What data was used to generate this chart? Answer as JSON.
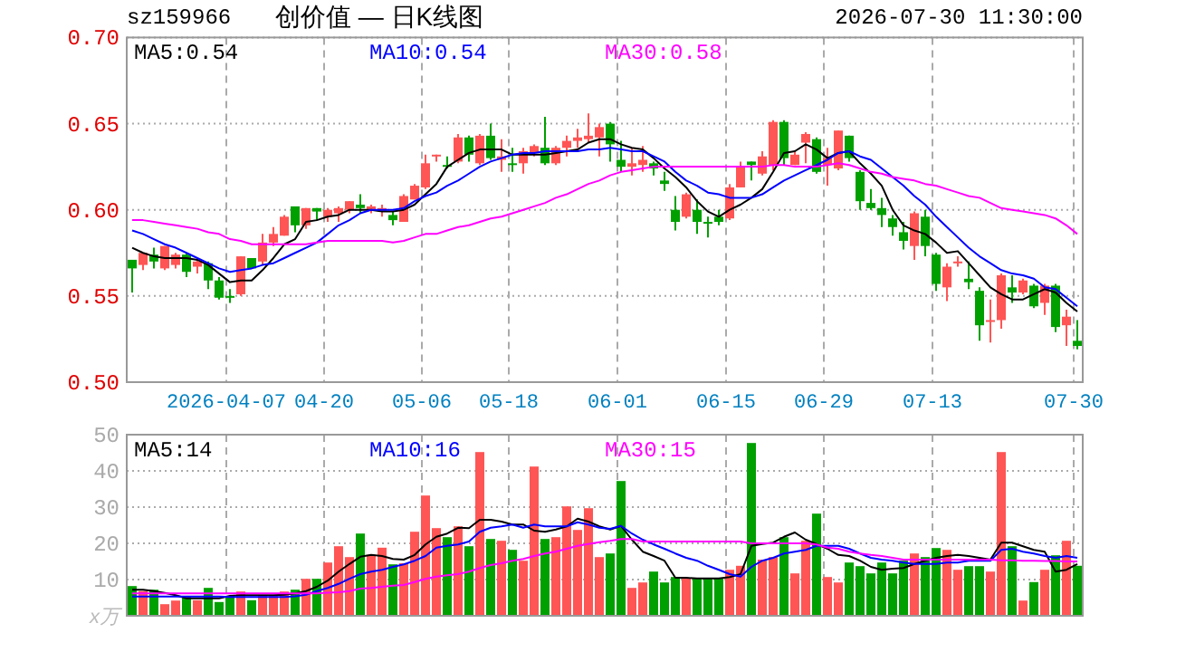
{
  "chart_data": [
    {
      "type": "candlestick",
      "title": "创价值 — 日K线图",
      "annotations": [
        "sz159966",
        "2026-07-30 11:30:00"
      ],
      "categories": [
        null,
        null,
        null,
        null,
        null,
        null,
        null,
        null,
        null,
        "2026-04-07",
        null,
        null,
        null,
        null,
        null,
        null,
        null,
        null,
        "04-20",
        null,
        null,
        null,
        null,
        null,
        null,
        null,
        null,
        "05-06",
        null,
        null,
        null,
        null,
        null,
        null,
        null,
        "05-18",
        null,
        null,
        null,
        null,
        null,
        null,
        null,
        null,
        null,
        "06-01",
        null,
        null,
        null,
        null,
        null,
        null,
        null,
        null,
        null,
        "06-15",
        null,
        null,
        null,
        null,
        null,
        null,
        null,
        null,
        "06-29",
        null,
        null,
        null,
        null,
        null,
        null,
        null,
        null,
        null,
        "07-13",
        null,
        null,
        null,
        null,
        null,
        null,
        null,
        null,
        null,
        null,
        null,
        null,
        "07-30"
      ],
      "ohlc": [
        [
          0.571,
          0.571,
          0.552,
          0.566
        ],
        [
          0.568,
          0.575,
          0.565,
          0.575
        ],
        [
          0.574,
          0.578,
          0.566,
          0.57
        ],
        [
          0.566,
          0.579,
          0.565,
          0.579
        ],
        [
          0.568,
          0.575,
          0.566,
          0.574
        ],
        [
          0.574,
          0.575,
          0.561,
          0.564
        ],
        [
          0.567,
          0.572,
          0.563,
          0.57
        ],
        [
          0.569,
          0.57,
          0.554,
          0.559
        ],
        [
          0.559,
          0.561,
          0.548,
          0.549
        ],
        [
          0.55,
          0.554,
          0.546,
          0.549
        ],
        [
          0.551,
          0.573,
          0.55,
          0.573
        ],
        [
          0.572,
          0.572,
          0.566,
          0.566
        ],
        [
          0.57,
          0.586,
          0.568,
          0.581
        ],
        [
          0.581,
          0.59,
          0.579,
          0.586
        ],
        [
          0.585,
          0.597,
          0.585,
          0.596
        ],
        [
          0.602,
          0.602,
          0.587,
          0.591
        ],
        [
          0.591,
          0.601,
          0.589,
          0.601
        ],
        [
          0.601,
          0.601,
          0.594,
          0.599
        ],
        [
          0.596,
          0.601,
          0.593,
          0.6
        ],
        [
          0.598,
          0.602,
          0.593,
          0.601
        ],
        [
          0.6,
          0.605,
          0.598,
          0.605
        ],
        [
          0.603,
          0.609,
          0.598,
          0.601
        ],
        [
          0.6,
          0.603,
          0.598,
          0.602
        ],
        [
          0.599,
          0.603,
          0.596,
          0.601
        ],
        [
          0.597,
          0.599,
          0.591,
          0.594
        ],
        [
          0.593,
          0.609,
          0.593,
          0.608
        ],
        [
          0.606,
          0.615,
          0.606,
          0.614
        ],
        [
          0.613,
          0.632,
          0.612,
          0.627
        ],
        [
          0.631,
          0.632,
          0.628,
          0.632
        ],
        [
          0.626,
          0.631,
          0.624,
          0.625
        ],
        [
          0.628,
          0.644,
          0.627,
          0.642
        ],
        [
          0.642,
          0.643,
          0.628,
          0.632
        ],
        [
          0.627,
          0.644,
          0.626,
          0.643
        ],
        [
          0.643,
          0.65,
          0.629,
          0.63
        ],
        [
          0.629,
          0.641,
          0.622,
          0.631
        ],
        [
          0.627,
          0.636,
          0.622,
          0.626
        ],
        [
          0.627,
          0.636,
          0.621,
          0.634
        ],
        [
          0.633,
          0.638,
          0.631,
          0.637
        ],
        [
          0.636,
          0.654,
          0.626,
          0.627
        ],
        [
          0.627,
          0.637,
          0.626,
          0.636
        ],
        [
          0.636,
          0.643,
          0.631,
          0.64
        ],
        [
          0.64,
          0.647,
          0.636,
          0.642
        ],
        [
          0.641,
          0.656,
          0.639,
          0.643
        ],
        [
          0.642,
          0.65,
          0.631,
          0.648
        ],
        [
          0.65,
          0.651,
          0.628,
          0.638
        ],
        [
          0.629,
          0.64,
          0.622,
          0.625
        ],
        [
          0.625,
          0.636,
          0.62,
          0.627
        ],
        [
          0.626,
          0.637,
          0.622,
          0.629
        ],
        [
          0.627,
          0.628,
          0.62,
          0.624
        ],
        [
          0.617,
          0.622,
          0.611,
          0.615
        ],
        [
          0.6,
          0.608,
          0.588,
          0.593
        ],
        [
          0.596,
          0.61,
          0.595,
          0.609
        ],
        [
          0.6,
          0.606,
          0.586,
          0.593
        ],
        [
          0.593,
          0.596,
          0.584,
          0.592
        ],
        [
          0.596,
          0.6,
          0.591,
          0.593
        ],
        [
          0.595,
          0.615,
          0.594,
          0.613
        ],
        [
          0.613,
          0.628,
          0.613,
          0.625
        ],
        [
          0.628,
          0.628,
          0.617,
          0.626
        ],
        [
          0.621,
          0.634,
          0.62,
          0.631
        ],
        [
          0.626,
          0.652,
          0.623,
          0.651
        ],
        [
          0.651,
          0.652,
          0.626,
          0.63
        ],
        [
          0.626,
          0.634,
          0.626,
          0.632
        ],
        [
          0.639,
          0.645,
          0.627,
          0.644
        ],
        [
          0.641,
          0.642,
          0.621,
          0.622
        ],
        [
          0.626,
          0.636,
          0.614,
          0.63
        ],
        [
          0.624,
          0.646,
          0.623,
          0.646
        ],
        [
          0.643,
          0.643,
          0.628,
          0.63
        ],
        [
          0.622,
          0.623,
          0.6,
          0.605
        ],
        [
          0.604,
          0.612,
          0.6,
          0.601
        ],
        [
          0.601,
          0.607,
          0.59,
          0.597
        ],
        [
          0.595,
          0.597,
          0.585,
          0.59
        ],
        [
          0.587,
          0.593,
          0.577,
          0.582
        ],
        [
          0.579,
          0.599,
          0.571,
          0.598
        ],
        [
          0.596,
          0.6,
          0.573,
          0.579
        ],
        [
          0.574,
          0.575,
          0.553,
          0.557
        ],
        [
          0.555,
          0.569,
          0.547,
          0.567
        ],
        [
          0.569,
          0.573,
          0.567,
          0.57
        ],
        [
          0.56,
          0.57,
          0.554,
          0.558
        ],
        [
          0.553,
          0.555,
          0.524,
          0.533
        ],
        [
          0.535,
          0.548,
          0.523,
          0.536
        ],
        [
          0.536,
          0.563,
          0.531,
          0.562
        ],
        [
          0.555,
          0.562,
          0.546,
          0.552
        ],
        [
          0.552,
          0.56,
          0.551,
          0.559
        ],
        [
          0.556,
          0.557,
          0.543,
          0.544
        ],
        [
          0.546,
          0.557,
          0.539,
          0.556
        ],
        [
          0.556,
          0.557,
          0.529,
          0.532
        ],
        [
          0.533,
          0.542,
          0.521,
          0.538
        ],
        [
          0.524,
          0.536,
          0.519,
          0.521
        ]
      ],
      "colors": [
        "#00a000",
        "#ff5555",
        "#00a000",
        "#ff5555",
        "#ff5555",
        "#00a000",
        "#ff5555",
        "#00a000",
        "#00a000",
        "#00a000",
        "#ff5555",
        "#00a000",
        "#ff5555",
        "#ff5555",
        "#ff5555",
        "#00a000",
        "#ff5555",
        "#00a000",
        "#ff5555",
        "#ff5555",
        "#ff5555",
        "#00a000",
        "#ff5555",
        "#ff5555",
        "#00a000",
        "#ff5555",
        "#ff5555",
        "#ff5555",
        "#ff5555",
        "#00a000",
        "#ff5555",
        "#00a000",
        "#ff5555",
        "#00a000",
        "#ff5555",
        "#00a000",
        "#ff5555",
        "#ff5555",
        "#00a000",
        "#ff5555",
        "#ff5555",
        "#ff5555",
        "#ff5555",
        "#ff5555",
        "#00a000",
        "#00a000",
        "#ff5555",
        "#ff5555",
        "#00a000",
        "#00a000",
        "#00a000",
        "#ff5555",
        "#00a000",
        "#00a000",
        "#00a000",
        "#ff5555",
        "#ff5555",
        "#00a000",
        "#ff5555",
        "#ff5555",
        "#00a000",
        "#ff5555",
        "#ff5555",
        "#00a000",
        "#ff5555",
        "#ff5555",
        "#00a000",
        "#00a000",
        "#00a000",
        "#00a000",
        "#00a000",
        "#00a000",
        "#ff5555",
        "#00a000",
        "#00a000",
        "#ff5555",
        "#ff5555",
        "#00a000",
        "#00a000",
        "#ff5555",
        "#ff5555",
        "#00a000",
        "#ff5555",
        "#00a000",
        "#ff5555",
        "#00a000",
        "#ff5555",
        "#00a000"
      ],
      "series": [
        {
          "type": "line",
          "name": "MA5:0.54",
          "color": "#000000",
          "values": [
            0.578,
            0.575,
            0.573,
            0.572,
            0.572,
            0.572,
            0.571,
            0.568,
            0.563,
            0.558,
            0.559,
            0.559,
            0.565,
            0.572,
            0.58,
            0.583,
            0.593,
            0.594,
            0.596,
            0.597,
            0.6,
            0.6,
            0.6,
            0.599,
            0.599,
            0.6,
            0.603,
            0.609,
            0.615,
            0.625,
            0.629,
            0.633,
            0.635,
            0.635,
            0.635,
            0.632,
            0.632,
            0.632,
            0.632,
            0.633,
            0.634,
            0.635,
            0.639,
            0.641,
            0.641,
            0.638,
            0.636,
            0.635,
            0.63,
            0.624,
            0.619,
            0.613,
            0.605,
            0.599,
            0.596,
            0.6,
            0.603,
            0.607,
            0.612,
            0.622,
            0.633,
            0.634,
            0.638,
            0.635,
            0.63,
            0.633,
            0.634,
            0.627,
            0.621,
            0.614,
            0.6,
            0.591,
            0.588,
            0.586,
            0.581,
            0.575,
            0.576,
            0.569,
            0.562,
            0.555,
            0.551,
            0.548,
            0.548,
            0.551,
            0.554,
            0.552,
            0.546,
            0.541
          ]
        },
        {
          "type": "line",
          "name": "MA10:0.54",
          "color": "#0000ff",
          "values": [
            0.588,
            0.586,
            0.583,
            0.58,
            0.578,
            0.575,
            0.572,
            0.569,
            0.566,
            0.564,
            0.565,
            0.566,
            0.568,
            0.569,
            0.572,
            0.575,
            0.578,
            0.581,
            0.586,
            0.591,
            0.594,
            0.598,
            0.6,
            0.6,
            0.6,
            0.601,
            0.605,
            0.608,
            0.61,
            0.614,
            0.617,
            0.621,
            0.625,
            0.628,
            0.63,
            0.632,
            0.633,
            0.633,
            0.634,
            0.634,
            0.634,
            0.634,
            0.635,
            0.635,
            0.636,
            0.635,
            0.634,
            0.634,
            0.631,
            0.628,
            0.622,
            0.617,
            0.614,
            0.61,
            0.609,
            0.607,
            0.607,
            0.607,
            0.609,
            0.613,
            0.617,
            0.62,
            0.623,
            0.626,
            0.629,
            0.633,
            0.634,
            0.631,
            0.629,
            0.624,
            0.619,
            0.614,
            0.608,
            0.603,
            0.596,
            0.59,
            0.584,
            0.578,
            0.573,
            0.569,
            0.565,
            0.563,
            0.562,
            0.56,
            0.555,
            0.554,
            0.549,
            0.544
          ]
        },
        {
          "type": "line",
          "name": "MA30:0.58",
          "color": "#ff00ff",
          "values": [
            0.594,
            0.594,
            0.593,
            0.592,
            0.591,
            0.59,
            0.589,
            0.587,
            0.586,
            0.583,
            0.582,
            0.58,
            0.58,
            0.58,
            0.58,
            0.58,
            0.58,
            0.581,
            0.582,
            0.582,
            0.582,
            0.582,
            0.582,
            0.582,
            0.581,
            0.582,
            0.584,
            0.586,
            0.586,
            0.588,
            0.59,
            0.591,
            0.593,
            0.595,
            0.596,
            0.598,
            0.6,
            0.602,
            0.604,
            0.607,
            0.609,
            0.612,
            0.615,
            0.617,
            0.62,
            0.622,
            0.623,
            0.624,
            0.625,
            0.625,
            0.625,
            0.625,
            0.625,
            0.625,
            0.625,
            0.625,
            0.625,
            0.625,
            0.625,
            0.626,
            0.626,
            0.625,
            0.625,
            0.625,
            0.626,
            0.627,
            0.626,
            0.624,
            0.622,
            0.621,
            0.619,
            0.618,
            0.617,
            0.615,
            0.614,
            0.612,
            0.61,
            0.608,
            0.607,
            0.604,
            0.601,
            0.6,
            0.599,
            0.598,
            0.597,
            0.595,
            0.591,
            0.586
          ]
        }
      ],
      "ylim": [
        0.5,
        0.7
      ],
      "yticks": [
        {
          "value": 0.5,
          "label": "0.50"
        },
        0.55,
        {
          "value": 0.6,
          "label": "0.60"
        },
        0.65,
        {
          "value": 0.7,
          "label": "0.70"
        }
      ],
      "grid": true,
      "legend": "top"
    },
    {
      "type": "bar",
      "ylabel": "x万",
      "categories": [
        null,
        null,
        null,
        null,
        null,
        null,
        null,
        null,
        null,
        null,
        null,
        null,
        null,
        null,
        null,
        null,
        null,
        null,
        null,
        null,
        null,
        null,
        null,
        null,
        null,
        null,
        null,
        null,
        null,
        null,
        null,
        null,
        null,
        null,
        null,
        null,
        null,
        null,
        null,
        null,
        null,
        null,
        null,
        null,
        null,
        null,
        null,
        null,
        null,
        null,
        null,
        null,
        null,
        null,
        null,
        null,
        null,
        null,
        null,
        null,
        null,
        null,
        null,
        null,
        null,
        null,
        null,
        null,
        null,
        null,
        null,
        null,
        null,
        null,
        null,
        null,
        null,
        null,
        null,
        null,
        null,
        null,
        null,
        null,
        null,
        null,
        null,
        null
      ],
      "series": [
        {
          "values": [
            8.2,
            6.8,
            7.2,
            3.2,
            4.2,
            5.2,
            4.3,
            7.7,
            3.8,
            5.5,
            6.7,
            4.3,
            5.5,
            5.5,
            6.7,
            7.2,
            10.2,
            10.2,
            14.7,
            19.2,
            16.2,
            22.7,
            16.8,
            18.8,
            14.2,
            14.5,
            23.2,
            33.2,
            24.2,
            21.7,
            24.7,
            19.2,
            45.2,
            21.2,
            20.7,
            18.2,
            15.2,
            41.2,
            21.2,
            21.7,
            30.2,
            23.7,
            29.7,
            16.2,
            17.2,
            37.2,
            7.7,
            9.2,
            12.2,
            9.2,
            10.7,
            10.5,
            10.5,
            10.5,
            10.5,
            12.7,
            13.8,
            47.7,
            15.5,
            16.2,
            21.7,
            11.7,
            20.7,
            28.2,
            10.7,
            9.2,
            14.7,
            13.7,
            11.7,
            14.7,
            11.7,
            15.2,
            17.2,
            16.2,
            18.7,
            18.2,
            12.7,
            13.7,
            13.7,
            12.2,
            45.2,
            19.2,
            4.2,
            9.3,
            12.7,
            16.7,
            20.7,
            13.8
          ],
          "colors": [
            "#00a000",
            "#ff5555",
            "#00a000",
            "#ff5555",
            "#ff5555",
            "#00a000",
            "#ff5555",
            "#00a000",
            "#00a000",
            "#00a000",
            "#ff5555",
            "#00a000",
            "#ff5555",
            "#ff5555",
            "#ff5555",
            "#00a000",
            "#ff5555",
            "#00a000",
            "#ff5555",
            "#ff5555",
            "#ff5555",
            "#00a000",
            "#ff5555",
            "#ff5555",
            "#00a000",
            "#ff5555",
            "#ff5555",
            "#ff5555",
            "#ff5555",
            "#00a000",
            "#ff5555",
            "#00a000",
            "#ff5555",
            "#00a000",
            "#ff5555",
            "#00a000",
            "#ff5555",
            "#ff5555",
            "#00a000",
            "#ff5555",
            "#ff5555",
            "#ff5555",
            "#ff5555",
            "#ff5555",
            "#00a000",
            "#00a000",
            "#ff5555",
            "#ff5555",
            "#00a000",
            "#00a000",
            "#00a000",
            "#ff5555",
            "#00a000",
            "#00a000",
            "#00a000",
            "#ff5555",
            "#ff5555",
            "#00a000",
            "#ff5555",
            "#ff5555",
            "#00a000",
            "#ff5555",
            "#ff5555",
            "#00a000",
            "#ff5555",
            "#ff5555",
            "#00a000",
            "#00a000",
            "#00a000",
            "#00a000",
            "#00a000",
            "#00a000",
            "#ff5555",
            "#00a000",
            "#00a000",
            "#ff5555",
            "#ff5555",
            "#00a000",
            "#00a000",
            "#ff5555",
            "#ff5555",
            "#00a000",
            "#ff5555",
            "#00a000",
            "#ff5555",
            "#00a000",
            "#ff5555",
            "#00a000"
          ]
        },
        {
          "type": "line",
          "name": "MA5:14",
          "color": "#000000",
          "values": [
            7.2,
            7.2,
            6.8,
            6.3,
            5.7,
            4.8,
            4.8,
            4.8,
            4.8,
            5.5,
            5.7,
            5.7,
            5.7,
            5.7,
            5.8,
            6.2,
            6.8,
            8.0,
            9.7,
            12.2,
            14.3,
            16.3,
            16.8,
            16.5,
            15.7,
            15.5,
            16.8,
            19.7,
            21.8,
            22.7,
            24.3,
            24.2,
            26.5,
            26.5,
            26.0,
            25.2,
            25.2,
            23.5,
            23.2,
            23.8,
            24.7,
            26.8,
            26.0,
            24.7,
            23.8,
            24.8,
            21.0,
            17.7,
            16.5,
            15.2,
            10.5,
            10.5,
            10.3,
            10.3,
            10.3,
            10.7,
            11.5,
            19.3,
            19.8,
            20.2,
            21.8,
            23.0,
            21.0,
            19.8,
            18.5,
            16.8,
            16.5,
            15.2,
            13.5,
            12.7,
            13.0,
            13.2,
            14.3,
            15.2,
            16.0,
            16.5,
            16.8,
            16.5,
            16.0,
            15.5,
            20.2,
            20.2,
            19.2,
            18.2,
            17.7,
            12.2,
            12.7,
            14.3
          ]
        },
        {
          "type": "line",
          "name": "MA10:16",
          "color": "#0000ff",
          "values": [
            5.3,
            5.3,
            5.3,
            5.3,
            5.3,
            5.3,
            5.3,
            5.3,
            5.3,
            5.2,
            5.2,
            5.2,
            5.2,
            5.2,
            5.2,
            5.4,
            5.8,
            6.8,
            7.7,
            8.8,
            10.2,
            11.5,
            12.2,
            12.7,
            13.5,
            14.2,
            15.2,
            16.5,
            18.8,
            19.3,
            19.7,
            20.5,
            23.2,
            24.3,
            24.7,
            25.2,
            24.3,
            25.2,
            24.7,
            24.7,
            24.7,
            25.8,
            25.2,
            24.3,
            24.0,
            24.8,
            22.7,
            21.0,
            19.7,
            18.5,
            17.2,
            16.0,
            15.2,
            13.8,
            12.7,
            11.5,
            10.8,
            13.5,
            15.2,
            16.0,
            17.2,
            17.7,
            18.2,
            19.3,
            19.3,
            19.3,
            18.5,
            17.2,
            16.0,
            15.5,
            15.2,
            14.7,
            14.3,
            14.3,
            14.3,
            14.7,
            14.7,
            15.2,
            15.2,
            15.2,
            18.2,
            18.5,
            17.7,
            17.2,
            16.5,
            16.0,
            16.5,
            16.0
          ]
        },
        {
          "type": "line",
          "name": "MA30:15",
          "color": "#ff00ff",
          "values": [
            6.2,
            6.2,
            6.2,
            6.2,
            6.2,
            6.2,
            6.2,
            6.2,
            6.2,
            6.2,
            6.2,
            6.2,
            6.2,
            6.2,
            6.2,
            6.2,
            6.2,
            6.2,
            6.4,
            6.5,
            6.8,
            7.5,
            7.7,
            8.0,
            8.3,
            8.5,
            9.3,
            10.2,
            10.8,
            11.2,
            11.5,
            12.2,
            13.2,
            14.0,
            14.5,
            15.2,
            15.7,
            16.5,
            17.2,
            17.7,
            18.5,
            19.3,
            19.8,
            20.3,
            20.7,
            21.2,
            21.2,
            20.5,
            20.5,
            20.5,
            20.5,
            20.5,
            20.5,
            20.5,
            20.5,
            20.5,
            20.5,
            20.0,
            20.0,
            20.0,
            20.0,
            20.0,
            20.0,
            19.7,
            18.8,
            18.5,
            17.7,
            17.2,
            16.8,
            16.5,
            16.0,
            15.5,
            15.5,
            15.5,
            15.5,
            15.5,
            15.5,
            15.5,
            15.5,
            15.5,
            15.3,
            15.3,
            15.2,
            15.2,
            15.1,
            15.1,
            15.0,
            15.0
          ]
        }
      ],
      "ylim": [
        0,
        50
      ],
      "yticks": [
        10,
        20,
        30,
        40,
        50
      ],
      "grid": true,
      "legend": "top",
      "tick_labels": "y"
    }
  ]
}
